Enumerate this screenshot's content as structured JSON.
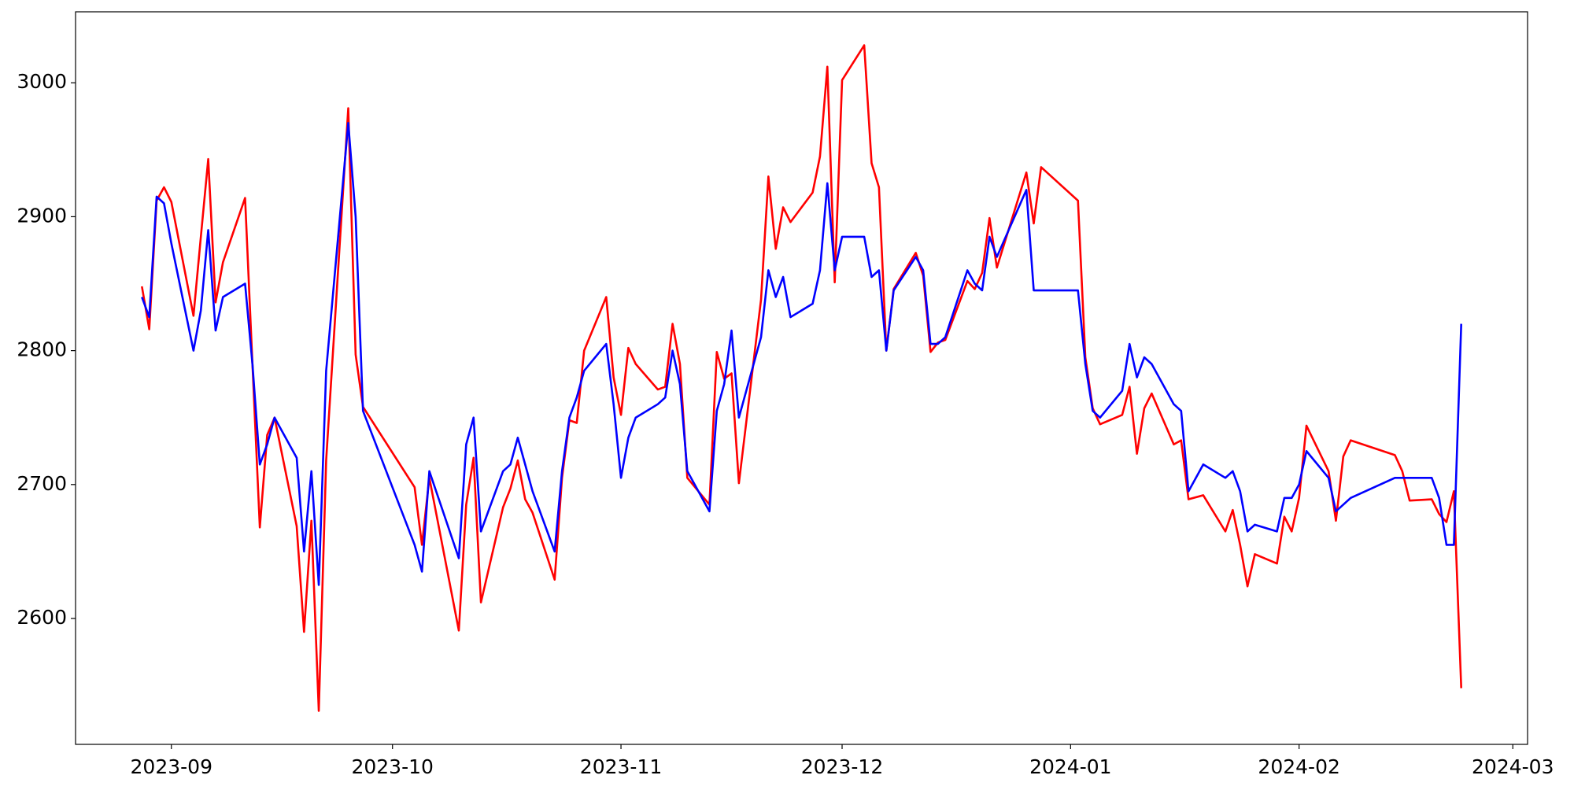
{
  "chart_data": {
    "type": "line",
    "x": [
      "2023-08-28",
      "2023-08-29",
      "2023-08-30",
      "2023-08-31",
      "2023-09-01",
      "2023-09-04",
      "2023-09-05",
      "2023-09-06",
      "2023-09-07",
      "2023-09-08",
      "2023-09-11",
      "2023-09-12",
      "2023-09-13",
      "2023-09-14",
      "2023-09-15",
      "2023-09-18",
      "2023-09-19",
      "2023-09-20",
      "2023-09-21",
      "2023-09-22",
      "2023-09-25",
      "2023-09-26",
      "2023-09-27",
      "2023-10-04",
      "2023-10-05",
      "2023-10-06",
      "2023-10-10",
      "2023-10-11",
      "2023-10-12",
      "2023-10-13",
      "2023-10-16",
      "2023-10-17",
      "2023-10-18",
      "2023-10-19",
      "2023-10-20",
      "2023-10-23",
      "2023-10-24",
      "2023-10-25",
      "2023-10-26",
      "2023-10-27",
      "2023-10-30",
      "2023-10-31",
      "2023-11-01",
      "2023-11-02",
      "2023-11-03",
      "2023-11-06",
      "2023-11-07",
      "2023-11-08",
      "2023-11-09",
      "2023-11-10",
      "2023-11-13",
      "2023-11-14",
      "2023-11-15",
      "2023-11-16",
      "2023-11-17",
      "2023-11-20",
      "2023-11-21",
      "2023-11-22",
      "2023-11-23",
      "2023-11-24",
      "2023-11-27",
      "2023-11-28",
      "2023-11-29",
      "2023-11-30",
      "2023-12-01",
      "2023-12-04",
      "2023-12-05",
      "2023-12-06",
      "2023-12-07",
      "2023-12-08",
      "2023-12-11",
      "2023-12-12",
      "2023-12-13",
      "2023-12-14",
      "2023-12-15",
      "2023-12-18",
      "2023-12-19",
      "2023-12-20",
      "2023-12-21",
      "2023-12-22",
      "2023-12-26",
      "2023-12-27",
      "2023-12-28",
      "2024-01-02",
      "2024-01-03",
      "2024-01-04",
      "2024-01-05",
      "2024-01-08",
      "2024-01-09",
      "2024-01-10",
      "2024-01-11",
      "2024-01-12",
      "2024-01-15",
      "2024-01-16",
      "2024-01-17",
      "2024-01-19",
      "2024-01-22",
      "2024-01-23",
      "2024-01-24",
      "2024-01-25",
      "2024-01-26",
      "2024-01-29",
      "2024-01-30",
      "2024-01-31",
      "2024-02-01",
      "2024-02-02",
      "2024-02-05",
      "2024-02-06",
      "2024-02-07",
      "2024-02-08",
      "2024-02-14",
      "2024-02-15",
      "2024-02-16",
      "2024-02-19",
      "2024-02-20",
      "2024-02-21",
      "2024-02-22",
      "2024-02-23"
    ],
    "series": [
      {
        "color": "red",
        "values": [
          2848,
          2816,
          2912,
          2922,
          2911,
          2826,
          2885,
          2943,
          2836,
          2866,
          2914,
          2790,
          2668,
          2737,
          2750,
          2669,
          2590,
          2673,
          2531,
          2718,
          2981,
          2797,
          2758,
          2698,
          2655,
          2705,
          2591,
          2685,
          2720,
          2612,
          2683,
          2697,
          2718,
          2689,
          2679,
          2629,
          2705,
          2748,
          2746,
          2800,
          2840,
          2780,
          2752,
          2802,
          2790,
          2771,
          2773,
          2820,
          2790,
          2705,
          2685,
          2799,
          2779,
          2783,
          2701,
          2838,
          2930,
          2876,
          2907,
          2896,
          2918,
          2945,
          3012,
          2851,
          3002,
          3028,
          2940,
          2922,
          2800,
          2846,
          2873,
          2856,
          2799,
          2806,
          2808,
          2852,
          2846,
          2858,
          2899,
          2862,
          2933,
          2895,
          2937,
          2912,
          2795,
          2757,
          2745,
          2752,
          2773,
          2723,
          2757,
          2768,
          2730,
          2733,
          2689,
          2692,
          2665,
          2681,
          2655,
          2624,
          2648,
          2641,
          2676,
          2665,
          2690,
          2744,
          2710,
          2673,
          2721,
          2733,
          2722,
          2710,
          2688,
          2689,
          2678,
          2672,
          2695,
          2548
        ]
      },
      {
        "color": "blue",
        "values": [
          2840,
          2825,
          2915,
          2910,
          2880,
          2800,
          2830,
          2890,
          2815,
          2840,
          2850,
          2790,
          2715,
          2730,
          2750,
          2720,
          2650,
          2710,
          2625,
          2785,
          2970,
          2900,
          2755,
          2655,
          2635,
          2710,
          2645,
          2730,
          2750,
          2665,
          2710,
          2715,
          2735,
          2715,
          2695,
          2650,
          2710,
          2750,
          2765,
          2785,
          2805,
          2760,
          2705,
          2735,
          2750,
          2760,
          2765,
          2800,
          2775,
          2710,
          2680,
          2755,
          2775,
          2815,
          2750,
          2810,
          2860,
          2840,
          2855,
          2825,
          2835,
          2860,
          2925,
          2860,
          2885,
          2885,
          2855,
          2860,
          2800,
          2845,
          2870,
          2860,
          2805,
          2805,
          2810,
          2860,
          2850,
          2845,
          2885,
          2870,
          2920,
          2845,
          2845,
          2845,
          2790,
          2755,
          2750,
          2770,
          2805,
          2780,
          2795,
          2790,
          2760,
          2755,
          2695,
          2715,
          2705,
          2710,
          2695,
          2665,
          2670,
          2665,
          2690,
          2690,
          2700,
          2725,
          2705,
          2680,
          2685,
          2690,
          2705,
          2705,
          2705,
          2705,
          2690,
          2655,
          2655,
          2820
        ]
      }
    ],
    "xlim": [
      "2023-08-19",
      "2024-03-03"
    ],
    "xticks": [
      {
        "value": "2023-09-01",
        "label": "2023-09"
      },
      {
        "value": "2023-10-01",
        "label": "2023-10"
      },
      {
        "value": "2023-11-01",
        "label": "2023-11"
      },
      {
        "value": "2023-12-01",
        "label": "2023-12"
      },
      {
        "value": "2024-01-01",
        "label": "2024-01"
      },
      {
        "value": "2024-02-01",
        "label": "2024-02"
      },
      {
        "value": "2024-03-01",
        "label": "2024-03"
      }
    ],
    "ylim": [
      2506,
      3053
    ],
    "yticks": [
      2600,
      2700,
      2800,
      2900,
      3000
    ],
    "grid": false
  }
}
